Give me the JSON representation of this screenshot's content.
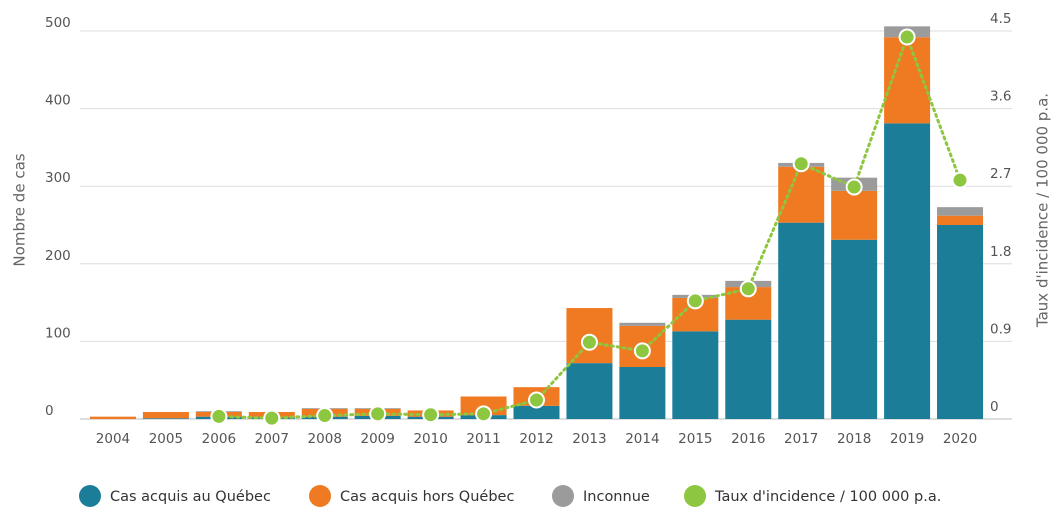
{
  "chart_data": {
    "type": "bar",
    "categories": [
      "2004",
      "2005",
      "2006",
      "2007",
      "2008",
      "2009",
      "2010",
      "2011",
      "2012",
      "2013",
      "2014",
      "2015",
      "2016",
      "2017",
      "2018",
      "2019",
      "2020"
    ],
    "stacked": true,
    "series": [
      {
        "name": "Cas acquis au Québec",
        "color": "#1c7d99",
        "values": [
          0,
          1,
          3,
          2,
          3,
          4,
          3,
          5,
          17,
          72,
          67,
          113,
          128,
          253,
          231,
          381,
          250
        ]
      },
      {
        "name": "Cas acquis hors Québec",
        "color": "#f07a21",
        "values": [
          3,
          8,
          6,
          7,
          10,
          9,
          8,
          24,
          24,
          71,
          53,
          43,
          42,
          72,
          63,
          111,
          12
        ]
      },
      {
        "name": "Inconnue",
        "color": "#9b9b9b",
        "values": [
          0,
          0,
          1,
          0,
          1,
          1,
          0,
          0,
          0,
          0,
          4,
          4,
          8,
          5,
          17,
          14,
          11
        ]
      },
      {
        "name": "Taux d'incidence / 100 000 p.a.",
        "type": "line",
        "axis": "y2",
        "color": "#8dc63f",
        "values": [
          null,
          null,
          0.03,
          0.01,
          0.04,
          0.06,
          0.05,
          0.06,
          0.22,
          0.89,
          0.79,
          1.37,
          1.51,
          2.96,
          2.69,
          4.43,
          2.77
        ]
      }
    ],
    "ylabel": "Nombre de cas",
    "y2label": "Taux d'incidence / 100 000 p.a.",
    "ylim": [
      0,
      500
    ],
    "yticks": [
      0,
      100,
      200,
      300,
      400,
      500
    ],
    "y2lim": [
      0,
      4.5
    ],
    "y2ticks": [
      0,
      0.9,
      1.8,
      2.7,
      3.6,
      4.5
    ],
    "grid": true,
    "legend": "bottom"
  }
}
